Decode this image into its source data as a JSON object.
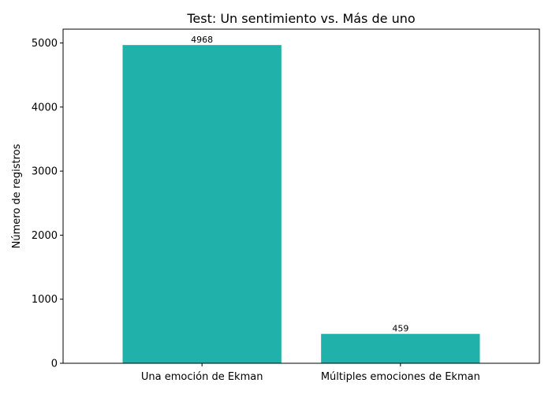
{
  "chart_data": {
    "type": "bar",
    "title": "Test: Un sentimiento vs. Más de uno",
    "xlabel": "",
    "ylabel": "Número de registros",
    "categories": [
      "Una emoción de Ekman",
      "Múltiples emociones de Ekman"
    ],
    "values": [
      4968,
      459
    ],
    "data_labels": [
      "4968",
      "459"
    ],
    "ylim": [
      0,
      5216
    ],
    "yticks": [
      0,
      1000,
      2000,
      3000,
      4000,
      5000
    ],
    "ytick_labels": [
      "0",
      "1000",
      "2000",
      "3000",
      "4000",
      "5000"
    ],
    "bar_color": "#20b2aa",
    "grid": false,
    "legend": "none"
  }
}
